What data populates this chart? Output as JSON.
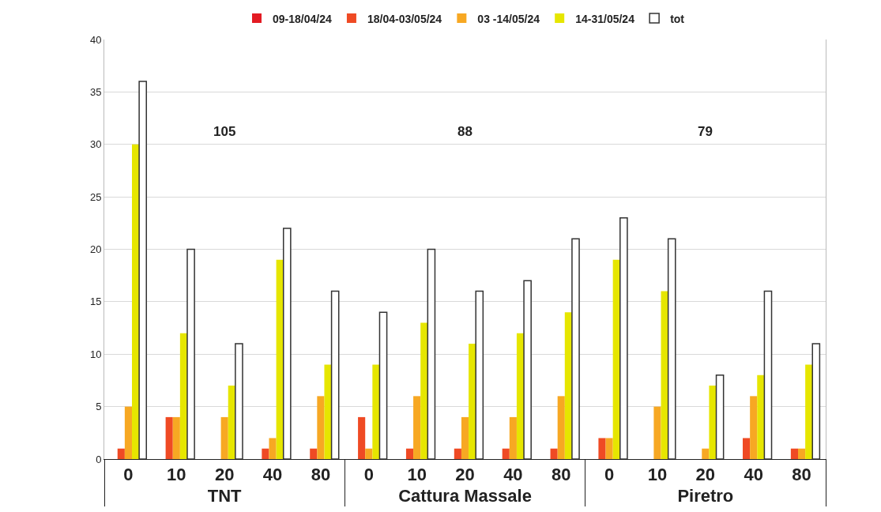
{
  "chart_data": {
    "type": "bar",
    "categories": [
      "0",
      "10",
      "20",
      "40",
      "80",
      "0",
      "10",
      "20",
      "40",
      "80",
      "0",
      "10",
      "20",
      "40",
      "80"
    ],
    "series": [
      {
        "name": "09-18/04/24",
        "color": "#e31b23",
        "values": [
          0,
          0,
          0,
          0,
          0,
          0,
          0,
          0,
          0,
          0,
          0,
          0,
          0,
          0,
          0
        ]
      },
      {
        "name": "18/04-03/05/24",
        "color": "#ef4a24",
        "values": [
          1,
          4,
          0,
          1,
          1,
          4,
          1,
          1,
          1,
          1,
          2,
          0,
          0,
          2,
          1
        ]
      },
      {
        "name": "03 -14/05/24",
        "color": "#f7a823",
        "values": [
          5,
          4,
          4,
          2,
          6,
          1,
          6,
          4,
          4,
          6,
          2,
          5,
          1,
          6,
          1
        ]
      },
      {
        "name": "14-31/05/24",
        "color": "#e6e600",
        "values": [
          30,
          12,
          7,
          19,
          9,
          9,
          13,
          11,
          12,
          14,
          19,
          16,
          7,
          8,
          9
        ]
      },
      {
        "name": "tot",
        "color": "#ffffff",
        "values": [
          36,
          20,
          11,
          22,
          16,
          14,
          20,
          16,
          17,
          21,
          23,
          21,
          8,
          16,
          11
        ]
      }
    ],
    "annotations": [
      "105",
      "88",
      "79",
      "TNT",
      "Cattura Massale",
      "Piretro"
    ],
    "ylim": [
      0,
      40
    ],
    "yticks": [
      0,
      5,
      10,
      15,
      20,
      25,
      30,
      35,
      40
    ],
    "grid": "y",
    "legend": "top"
  }
}
